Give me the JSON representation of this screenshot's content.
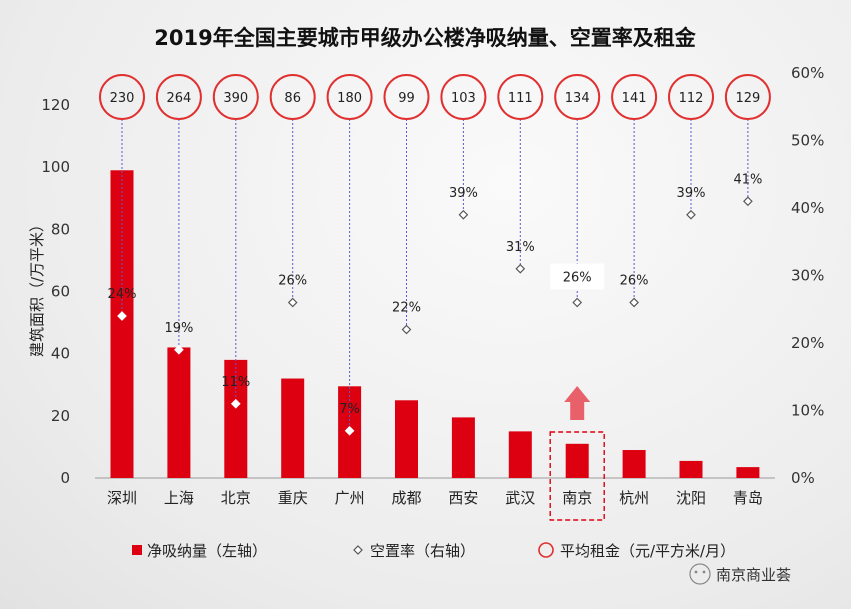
{
  "title": "2019年全国主要城市甲级办公楼净吸纳量、空置率及租金",
  "chart_data": {
    "type": "bar",
    "categories": [
      "深圳",
      "上海",
      "北京",
      "重庆",
      "广州",
      "成都",
      "西安",
      "武汉",
      "南京",
      "杭州",
      "沈阳",
      "青岛"
    ],
    "series": [
      {
        "name": "净吸纳量（左轴）",
        "axis": "left",
        "values": [
          99,
          42,
          38,
          32,
          29.5,
          25,
          19.5,
          15,
          11,
          9,
          5.5,
          3.5
        ]
      },
      {
        "name": "空置率（右轴）",
        "axis": "right",
        "values": [
          24,
          19,
          11,
          26,
          7,
          22,
          39,
          31,
          26,
          26,
          39,
          41
        ],
        "labels": [
          "24%",
          "19%",
          "11%",
          "26%",
          "7%",
          "22%",
          "39%",
          "31%",
          "26%",
          "26%",
          "39%",
          "41%"
        ]
      },
      {
        "name": "平均租金（元/平方米/月）",
        "axis": "none",
        "values": [
          230,
          264,
          390,
          86,
          180,
          99,
          103,
          111,
          134,
          141,
          112,
          129
        ]
      }
    ],
    "ylabel": "建筑面积（/万平米）",
    "ylim": [
      0,
      120
    ],
    "y_ticks": [
      "0",
      "20",
      "40",
      "60",
      "80",
      "100",
      "120"
    ],
    "y2lim": [
      0,
      60
    ],
    "y2_ticks": [
      "0%",
      "10%",
      "20%",
      "30%",
      "40%",
      "50%",
      "60%"
    ],
    "highlight_category": "南京",
    "highlight_label": "26%",
    "legend_position": "bottom",
    "colors": {
      "bar": "#dd0010",
      "rent_circle": "#e03030",
      "arrow": "#e8606a",
      "dash": "#5a5ad0"
    }
  },
  "watermark": "南京商业荟"
}
